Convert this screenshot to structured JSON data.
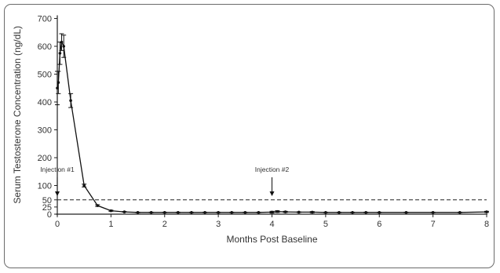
{
  "chart_data": {
    "type": "line",
    "title": "",
    "xlabel": "Months Post Baseline",
    "ylabel": "Serum Testosterone Concentration (ng/dL)",
    "xlim": [
      0,
      8
    ],
    "x_ticks": [
      0,
      1,
      2,
      3,
      4,
      5,
      6,
      7,
      8
    ],
    "y_ticks": [
      0,
      25,
      50,
      100,
      200,
      300,
      400,
      500,
      600,
      700
    ],
    "y_scale": "piecewise: 0-100 expanded, 100-700 linear",
    "threshold_line": {
      "y": 50,
      "style": "dashed"
    },
    "annotations": [
      {
        "label": "Injection #1",
        "x": 0
      },
      {
        "label": "Injection #2",
        "x": 4
      }
    ],
    "series": [
      {
        "points": [
          {
            "x": 0.0,
            "y": 450,
            "err": 60
          },
          {
            "x": 0.02,
            "y": 470,
            "err": 40
          },
          {
            "x": 0.05,
            "y": 575,
            "err": 40
          },
          {
            "x": 0.08,
            "y": 615,
            "err": 30
          },
          {
            "x": 0.12,
            "y": 600,
            "err": 40
          },
          {
            "x": 0.25,
            "y": 405,
            "err": 25
          },
          {
            "x": 0.5,
            "y": 100,
            "err": 5
          },
          {
            "x": 0.75,
            "y": 30,
            "err": 3
          },
          {
            "x": 1.0,
            "y": 12,
            "err": 2
          },
          {
            "x": 1.25,
            "y": 8,
            "err": 1
          },
          {
            "x": 1.5,
            "y": 6,
            "err": 1
          },
          {
            "x": 1.75,
            "y": 6,
            "err": 1
          },
          {
            "x": 2.0,
            "y": 6,
            "err": 1
          },
          {
            "x": 2.25,
            "y": 6,
            "err": 1
          },
          {
            "x": 2.5,
            "y": 6,
            "err": 1
          },
          {
            "x": 2.75,
            "y": 6,
            "err": 1
          },
          {
            "x": 3.0,
            "y": 6,
            "err": 1
          },
          {
            "x": 3.25,
            "y": 6,
            "err": 1
          },
          {
            "x": 3.5,
            "y": 6,
            "err": 1
          },
          {
            "x": 3.75,
            "y": 6,
            "err": 1
          },
          {
            "x": 4.0,
            "y": 7,
            "err": 3
          },
          {
            "x": 4.1,
            "y": 9,
            "err": 3
          },
          {
            "x": 4.25,
            "y": 8,
            "err": 2
          },
          {
            "x": 4.5,
            "y": 7,
            "err": 1
          },
          {
            "x": 4.75,
            "y": 7,
            "err": 2
          },
          {
            "x": 5.0,
            "y": 6,
            "err": 1
          },
          {
            "x": 5.25,
            "y": 6,
            "err": 1
          },
          {
            "x": 5.5,
            "y": 6,
            "err": 1
          },
          {
            "x": 5.75,
            "y": 6,
            "err": 1
          },
          {
            "x": 6.0,
            "y": 6,
            "err": 1
          },
          {
            "x": 6.5,
            "y": 6,
            "err": 1
          },
          {
            "x": 7.0,
            "y": 6,
            "err": 1
          },
          {
            "x": 7.5,
            "y": 6,
            "err": 1
          },
          {
            "x": 8.0,
            "y": 8,
            "err": 2
          }
        ]
      }
    ]
  }
}
